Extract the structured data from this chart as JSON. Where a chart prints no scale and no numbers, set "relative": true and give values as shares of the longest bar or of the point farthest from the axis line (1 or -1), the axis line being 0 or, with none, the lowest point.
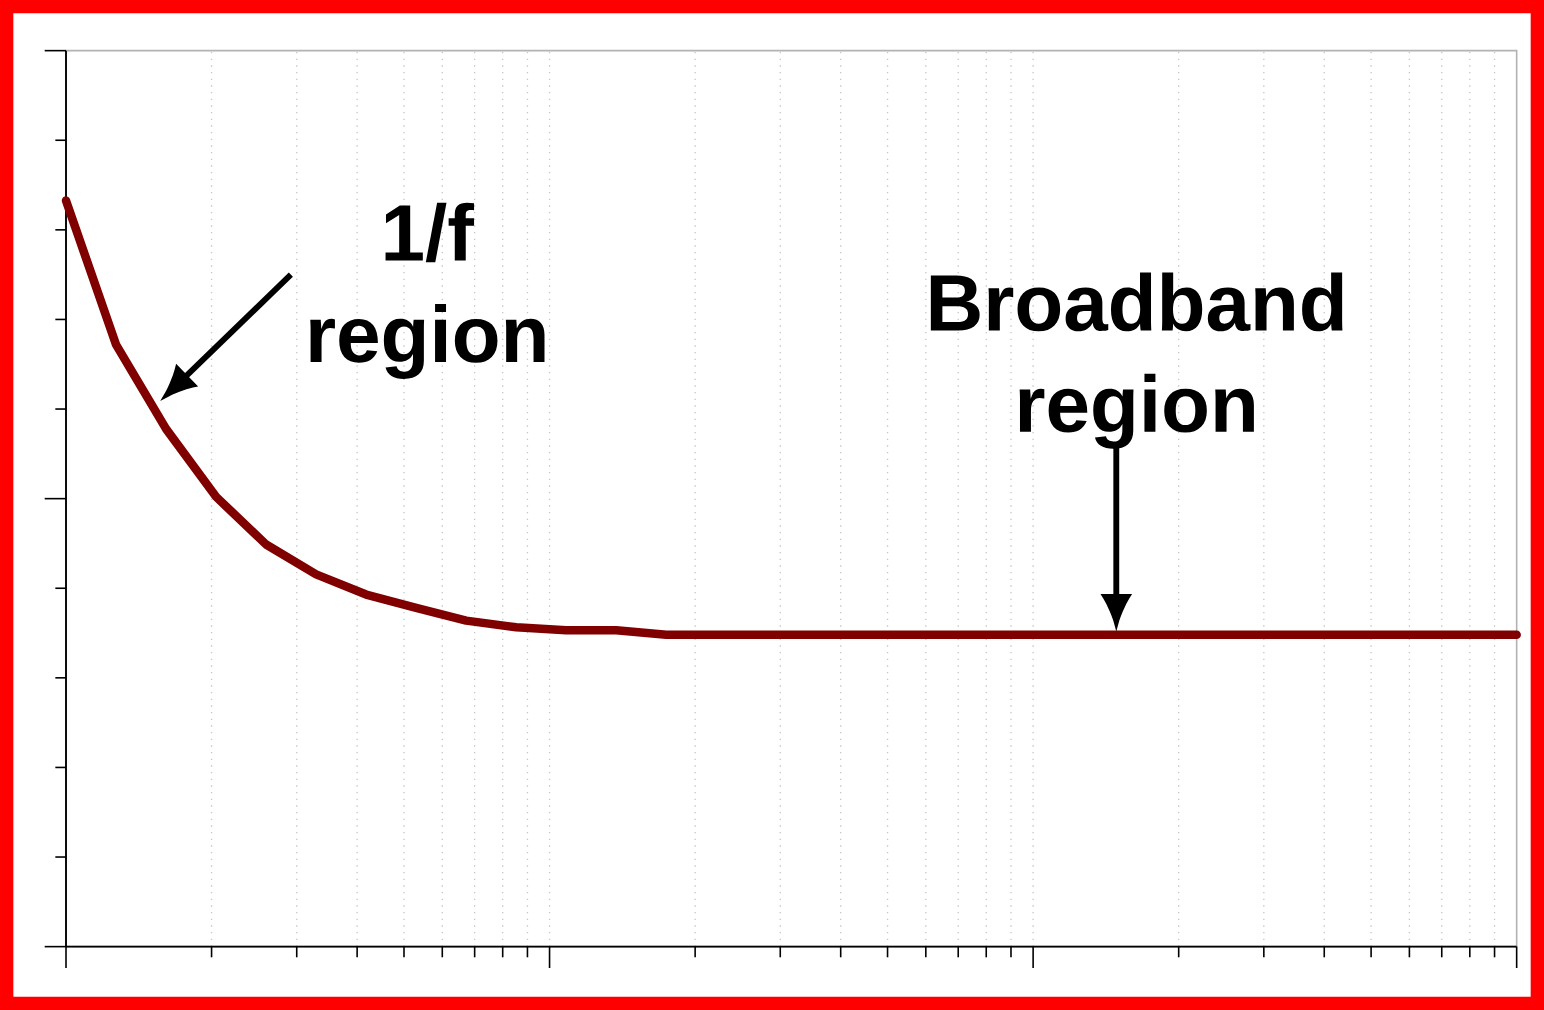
{
  "chart_data": {
    "type": "line",
    "relative": true,
    "grid": "x",
    "marker": "none",
    "line_style": "solid",
    "categories": [
      null,
      null,
      null,
      null,
      null,
      null,
      null,
      null,
      null,
      null,
      null,
      null,
      null,
      null,
      null,
      null,
      null,
      null,
      null,
      null,
      null,
      null,
      null,
      null,
      null,
      null,
      null,
      null,
      null,
      null
    ],
    "series": [
      {
        "color": "#800000",
        "values": [
          1.0,
          0.807,
          0.694,
          0.603,
          0.539,
          0.499,
          0.472,
          0.454,
          0.437,
          0.428,
          0.424,
          0.424,
          0.418,
          0.418,
          0.418,
          0.418,
          0.418,
          0.418,
          0.418,
          0.418,
          0.418,
          0.418,
          0.418,
          0.418,
          0.418,
          0.418,
          0.418,
          0.418,
          0.418,
          0.418
        ]
      }
    ],
    "annotations": [
      "1/f region",
      "Broadband region"
    ]
  }
}
